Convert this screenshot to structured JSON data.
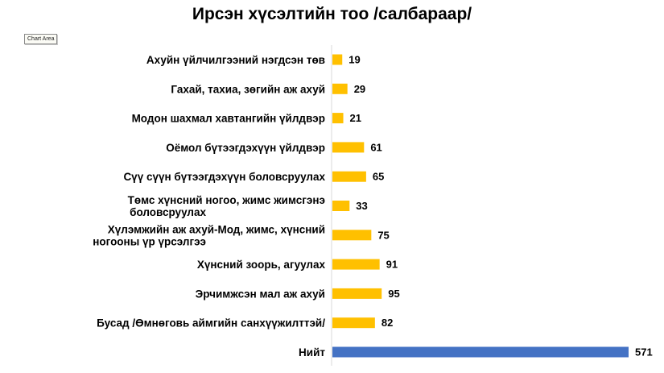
{
  "chart_data": {
    "type": "bar",
    "orientation": "horizontal",
    "title": "Ирсэн хүсэлтийн тоо /салбараар/",
    "tooltip": "Chart Area",
    "categories": [
      "Ахуйн үйлчилгээний нэгдсэн төв",
      "Гахай, тахиа, зөгийн аж ахуй",
      "Модон шахмал хавтангийн үйлдвэр",
      "Оёмол бүтээгдэхүүн үйлдвэр",
      "Сүү сүүн бүтээгдэхүүн боловсруулах",
      "Төмс хүнсний ногоо, жимс жимсгэнэ боловсруулах",
      "Хүлэмжийн аж ахуй-Мод, жимс, хүнсний ногооны үр үрсэлгээ",
      "Хүнсний зоорь, агуулах",
      "Эрчимжсэн мал аж ахуй",
      "Бусад /Өмнөговь аймгийн санхүүжилттэй/",
      "Нийт"
    ],
    "values": [
      19,
      29,
      21,
      61,
      65,
      33,
      75,
      91,
      95,
      82,
      571
    ],
    "colors": {
      "default": "#ffc000",
      "total": "#4472c4"
    },
    "xlim": [
      0,
      571
    ],
    "grid": false,
    "legend": "none"
  }
}
